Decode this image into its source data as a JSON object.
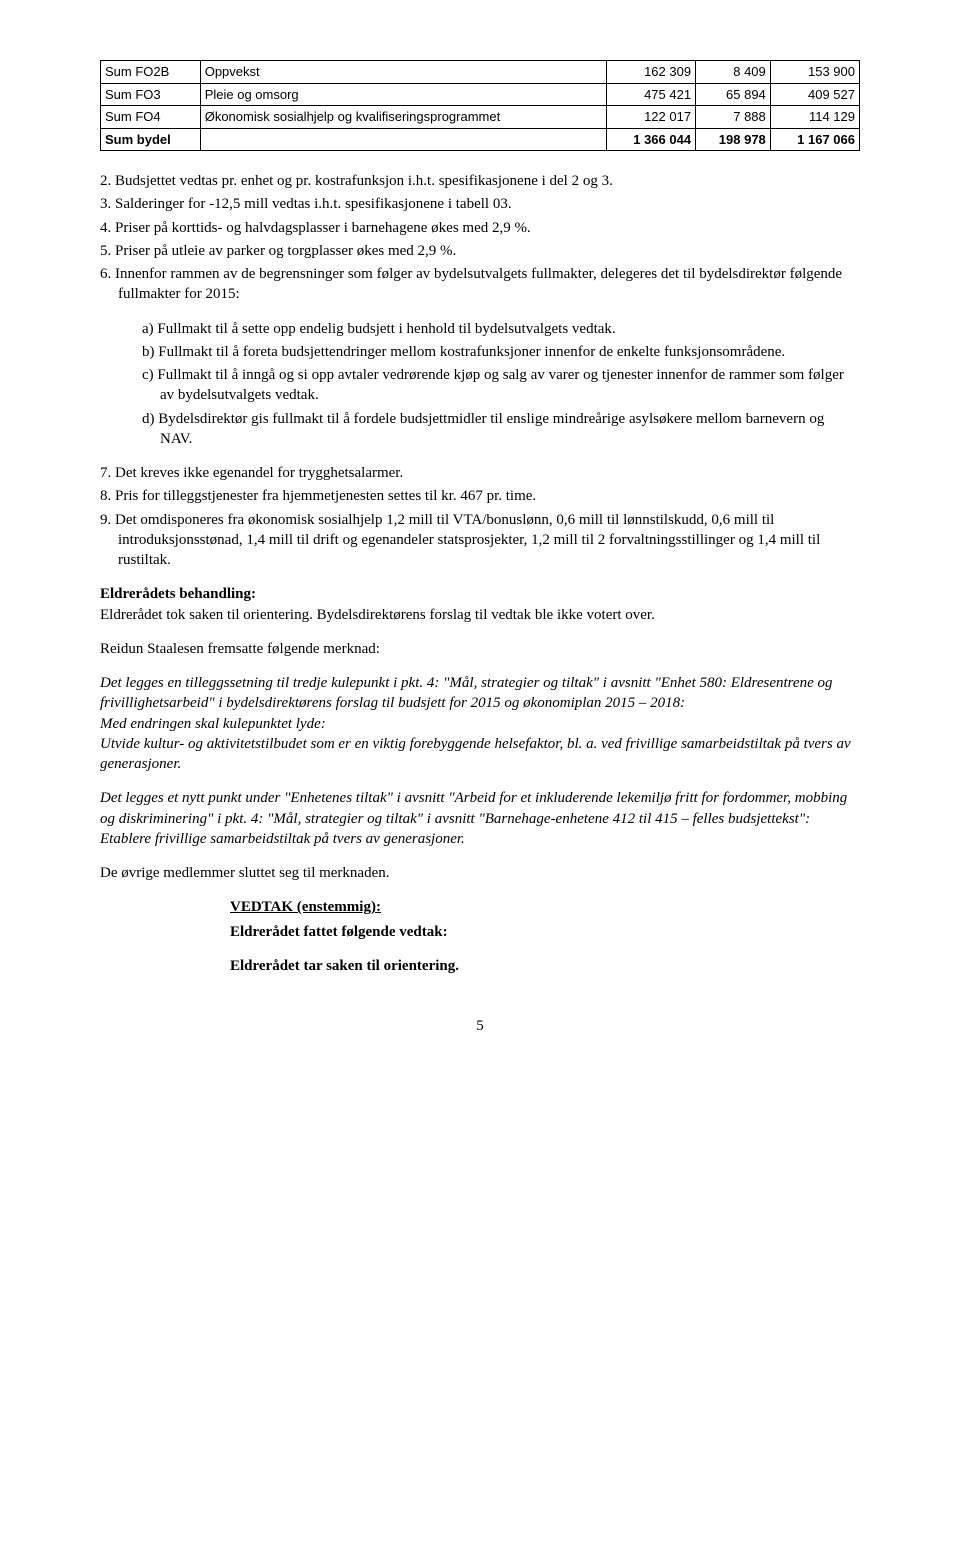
{
  "table": {
    "columns_count": 5,
    "rows": [
      {
        "bold": false,
        "cells": [
          "Sum FO2B",
          "Oppvekst",
          "162 309",
          "8 409",
          "153 900"
        ]
      },
      {
        "bold": false,
        "cells": [
          "Sum FO3",
          "Pleie og omsorg",
          "475 421",
          "65 894",
          "409 527"
        ]
      },
      {
        "bold": false,
        "cells": [
          "Sum FO4",
          "Økonomisk sosialhjelp og kvalifiseringsprogrammet",
          "122 017",
          "7 888",
          "114 129"
        ]
      },
      {
        "bold": true,
        "cells": [
          "Sum bydel",
          "",
          "1 366 044",
          "198 978",
          "1 167 066"
        ]
      }
    ],
    "numeric_cols": [
      2,
      3,
      4
    ]
  },
  "list1": [
    "2. Budsjettet vedtas pr. enhet og pr. kostrafunksjon i.h.t. spesifikasjonene i del 2 og 3.",
    "3. Salderinger for -12,5 mill vedtas i.h.t. spesifikasjonene i tabell 03.",
    "4. Priser på korttids- og halvdagsplasser i barnehagene økes med 2,9 %.",
    "5. Priser på utleie av parker og torgplasser økes med 2,9 %.",
    "6. Innenfor rammen av de begrensninger som følger av bydelsutvalgets fullmakter, delegeres det til bydelsdirektør følgende fullmakter for 2015:"
  ],
  "alphalist": [
    "a) Fullmakt til å sette opp endelig budsjett i henhold til bydelsutvalgets vedtak.",
    "b) Fullmakt til å foreta budsjettendringer mellom kostrafunksjoner innenfor de enkelte funksjonsområdene.",
    "c) Fullmakt til å inngå og si opp avtaler vedrørende kjøp og salg av varer og tjenester innenfor de rammer som følger av bydelsutvalgets vedtak.",
    "d) Bydelsdirektør gis fullmakt til å fordele budsjettmidler til enslige mindreårige asylsøkere mellom barnevern og NAV."
  ],
  "list2": [
    "7. Det kreves ikke egenandel for trygghetsalarmer.",
    "8. Pris for tilleggstjenester fra hjemmetjenesten settes til kr. 467 pr. time.",
    "9. Det omdisponeres fra økonomisk sosialhjelp 1,2 mill til VTA/bonuslønn, 0,6 mill til lønnstilskudd, 0,6 mill til introduksjonsstønad, 1,4 mill til drift og egenandeler statsprosjekter, 1,2 mill til 2 forvaltningsstillinger og 1,4 mill til rustiltak."
  ],
  "behandling_heading": "Eldrerådets behandling:",
  "behandling_text": "Eldrerådet tok saken til orientering. Bydelsdirektørens forslag til vedtak ble ikke votert over.",
  "staalesen_intro": "Reidun Staalesen fremsatte følgende merknad:",
  "merknad_block": {
    "p1": "Det legges en tilleggssetning til tredje kulepunkt i pkt. 4: \"Mål, strategier og tiltak\" i avsnitt \"Enhet 580: Eldresentrene og frivillighetsarbeid\" i bydelsdirektørens forslag til budsjett for 2015 og økonomiplan 2015 – 2018:",
    "p2": "Med endringen skal kulepunktet lyde:",
    "p3": "Utvide kultur- og aktivitetstilbudet som er en viktig forebyggende helsefaktor, bl. a. ved frivillige samarbeidstiltak på tvers av generasjoner."
  },
  "merknad_block2": {
    "p1": "Det legges et nytt punkt under \"Enhetenes tiltak\" i avsnitt \"Arbeid for et inkluderende lekemiljø fritt for fordommer, mobbing og diskriminering\" i pkt. 4: \"Mål, strategier og tiltak\" i avsnitt \"Barnehage-enhetene 412 til 415 – felles budsjetteksst\":",
    "p2": "Etablere frivillige samarbeidstiltak på tvers av generasjoner."
  },
  "merknad_block2_corrected": {
    "p1": "Det legges et nytt punkt under \"Enhetenes tiltak\" i avsnitt \"Arbeid for et inkluderende lekemiljø fritt for fordommer, mobbing og diskriminering\" i pkt. 4: \"Mål, strategier og tiltak\" i avsnitt \"Barnehage-enhetene 412 til 415 – felles budsjettekst\":",
    "p2": "Etablere frivillige samarbeidstiltak på tvers av generasjoner."
  },
  "slutning": "De øvrige medlemmer sluttet seg til merknaden.",
  "vedtak_heading": "VEDTAK (enstemmig):",
  "vedtak_line1": "Eldrerådet fattet følgende vedtak:",
  "vedtak_line2": "Eldrerådet tar saken til orientering.",
  "page_number": "5"
}
